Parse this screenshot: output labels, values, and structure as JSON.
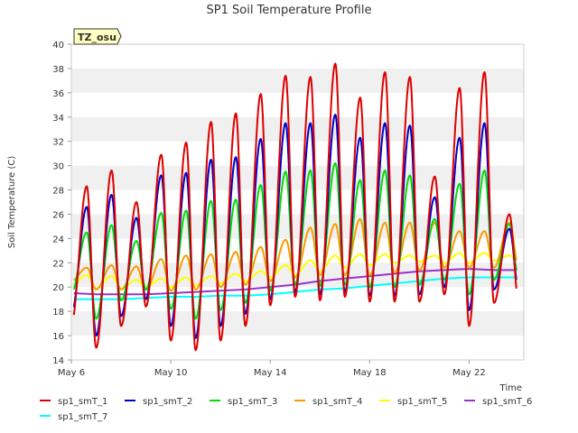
{
  "chart_data": {
    "type": "line",
    "title": "SP1 Soil Temperature Profile",
    "xlabel": "Time",
    "ylabel": "Soil Temperature (C)",
    "annotation": "TZ_osu",
    "xlim": [
      6,
      24.2
    ],
    "ylim": [
      14,
      40
    ],
    "yticks": [
      14,
      16,
      18,
      20,
      22,
      24,
      26,
      28,
      30,
      32,
      34,
      36,
      38,
      40
    ],
    "xticks": [
      {
        "value": 6,
        "label": "May 6"
      },
      {
        "value": 10,
        "label": "May 10"
      },
      {
        "value": 14,
        "label": "May 14"
      },
      {
        "value": 18,
        "label": "May 18"
      },
      {
        "value": 22,
        "label": "May 22"
      }
    ],
    "legend_position": "bottom",
    "grid": "horizontal bands",
    "days": [
      6,
      7,
      8,
      9,
      10,
      11,
      12,
      13,
      14,
      15,
      16,
      17,
      18,
      19,
      20,
      21,
      22,
      23
    ],
    "series": [
      {
        "name": "sp1_smT_1",
        "color": "#dd0000",
        "min": [
          17.0,
          15.0,
          16.8,
          18.4,
          15.6,
          14.8,
          15.6,
          16.8,
          18.5,
          19.2,
          18.9,
          19.2,
          18.8,
          18.8,
          18.8,
          19.4,
          16.8,
          18.7
        ],
        "max": [
          28.3,
          29.6,
          27.0,
          30.9,
          31.9,
          33.6,
          34.3,
          35.9,
          37.4,
          37.3,
          38.4,
          35.6,
          37.7,
          37.3,
          29.1,
          36.4,
          37.7,
          26.0
        ]
      },
      {
        "name": "sp1_smT_2",
        "color": "#0000cc",
        "min": [
          17.8,
          16.0,
          17.6,
          19.0,
          16.8,
          15.8,
          16.8,
          17.8,
          19.0,
          19.6,
          19.4,
          19.6,
          19.3,
          19.3,
          19.4,
          20.0,
          18.1,
          19.8
        ],
        "max": [
          26.6,
          27.6,
          25.7,
          29.2,
          29.4,
          30.5,
          30.7,
          32.2,
          33.5,
          33.5,
          34.2,
          32.3,
          33.5,
          33.3,
          27.4,
          32.3,
          33.5,
          24.8
        ]
      },
      {
        "name": "sp1_smT_3",
        "color": "#00dd00",
        "min": [
          19.5,
          17.4,
          18.9,
          19.8,
          18.2,
          17.4,
          18.1,
          18.7,
          19.7,
          20.2,
          20.1,
          20.2,
          20.0,
          20.0,
          20.2,
          20.6,
          19.4,
          20.6
        ],
        "max": [
          24.5,
          25.1,
          23.8,
          26.1,
          26.3,
          27.1,
          27.2,
          28.4,
          29.5,
          29.6,
          30.2,
          28.8,
          29.6,
          29.2,
          25.6,
          28.5,
          29.6,
          25.2
        ]
      },
      {
        "name": "sp1_smT_4",
        "color": "#ff9900",
        "min": [
          20.5,
          19.8,
          19.8,
          19.8,
          19.7,
          19.8,
          20.0,
          20.2,
          20.5,
          20.8,
          21.0,
          21.0,
          21.0,
          21.2,
          21.4,
          21.6,
          21.6,
          21.6
        ],
        "max": [
          21.6,
          21.8,
          21.7,
          22.3,
          22.6,
          22.7,
          22.9,
          23.3,
          23.9,
          24.9,
          25.2,
          25.6,
          25.3,
          25.3,
          25.3,
          24.6,
          24.6,
          25.3
        ]
      },
      {
        "name": "sp1_smT_5",
        "color": "#ffff00",
        "min": [
          20.1,
          19.9,
          19.9,
          20.0,
          20.0,
          20.1,
          20.3,
          20.5,
          20.8,
          21.0,
          21.3,
          21.6,
          21.8,
          22.0,
          22.1,
          22.0,
          22.0,
          22.2
        ],
        "max": [
          21.0,
          20.9,
          20.6,
          20.7,
          20.8,
          20.9,
          21.1,
          21.3,
          21.8,
          22.2,
          22.6,
          22.7,
          22.7,
          22.6,
          22.6,
          22.8,
          22.8,
          22.6
        ]
      },
      {
        "name": "sp1_smT_6",
        "color": "#9933cc",
        "points": [
          [
            6.1,
            19.5
          ],
          [
            7,
            19.4
          ],
          [
            8,
            19.4
          ],
          [
            9,
            19.4
          ],
          [
            10,
            19.5
          ],
          [
            11,
            19.6
          ],
          [
            12,
            19.7
          ],
          [
            13,
            19.8
          ],
          [
            14,
            20.0
          ],
          [
            15,
            20.2
          ],
          [
            16,
            20.5
          ],
          [
            17,
            20.7
          ],
          [
            18,
            20.9
          ],
          [
            19,
            21.1
          ],
          [
            20,
            21.3
          ],
          [
            21,
            21.4
          ],
          [
            22,
            21.5
          ],
          [
            23,
            21.4
          ],
          [
            23.9,
            21.4
          ]
        ]
      },
      {
        "name": "sp1_smT_7",
        "color": "#00ffff",
        "points": [
          [
            6.1,
            19.0
          ],
          [
            7,
            19.0
          ],
          [
            8,
            19.0
          ],
          [
            9,
            19.1
          ],
          [
            10,
            19.2
          ],
          [
            11,
            19.2
          ],
          [
            12,
            19.3
          ],
          [
            13,
            19.3
          ],
          [
            14,
            19.4
          ],
          [
            15,
            19.6
          ],
          [
            16,
            19.8
          ],
          [
            17,
            19.9
          ],
          [
            18,
            20.1
          ],
          [
            19,
            20.3
          ],
          [
            20,
            20.5
          ],
          [
            21,
            20.7
          ],
          [
            22,
            20.8
          ],
          [
            23,
            20.8
          ],
          [
            23.9,
            20.8
          ]
        ]
      }
    ]
  }
}
